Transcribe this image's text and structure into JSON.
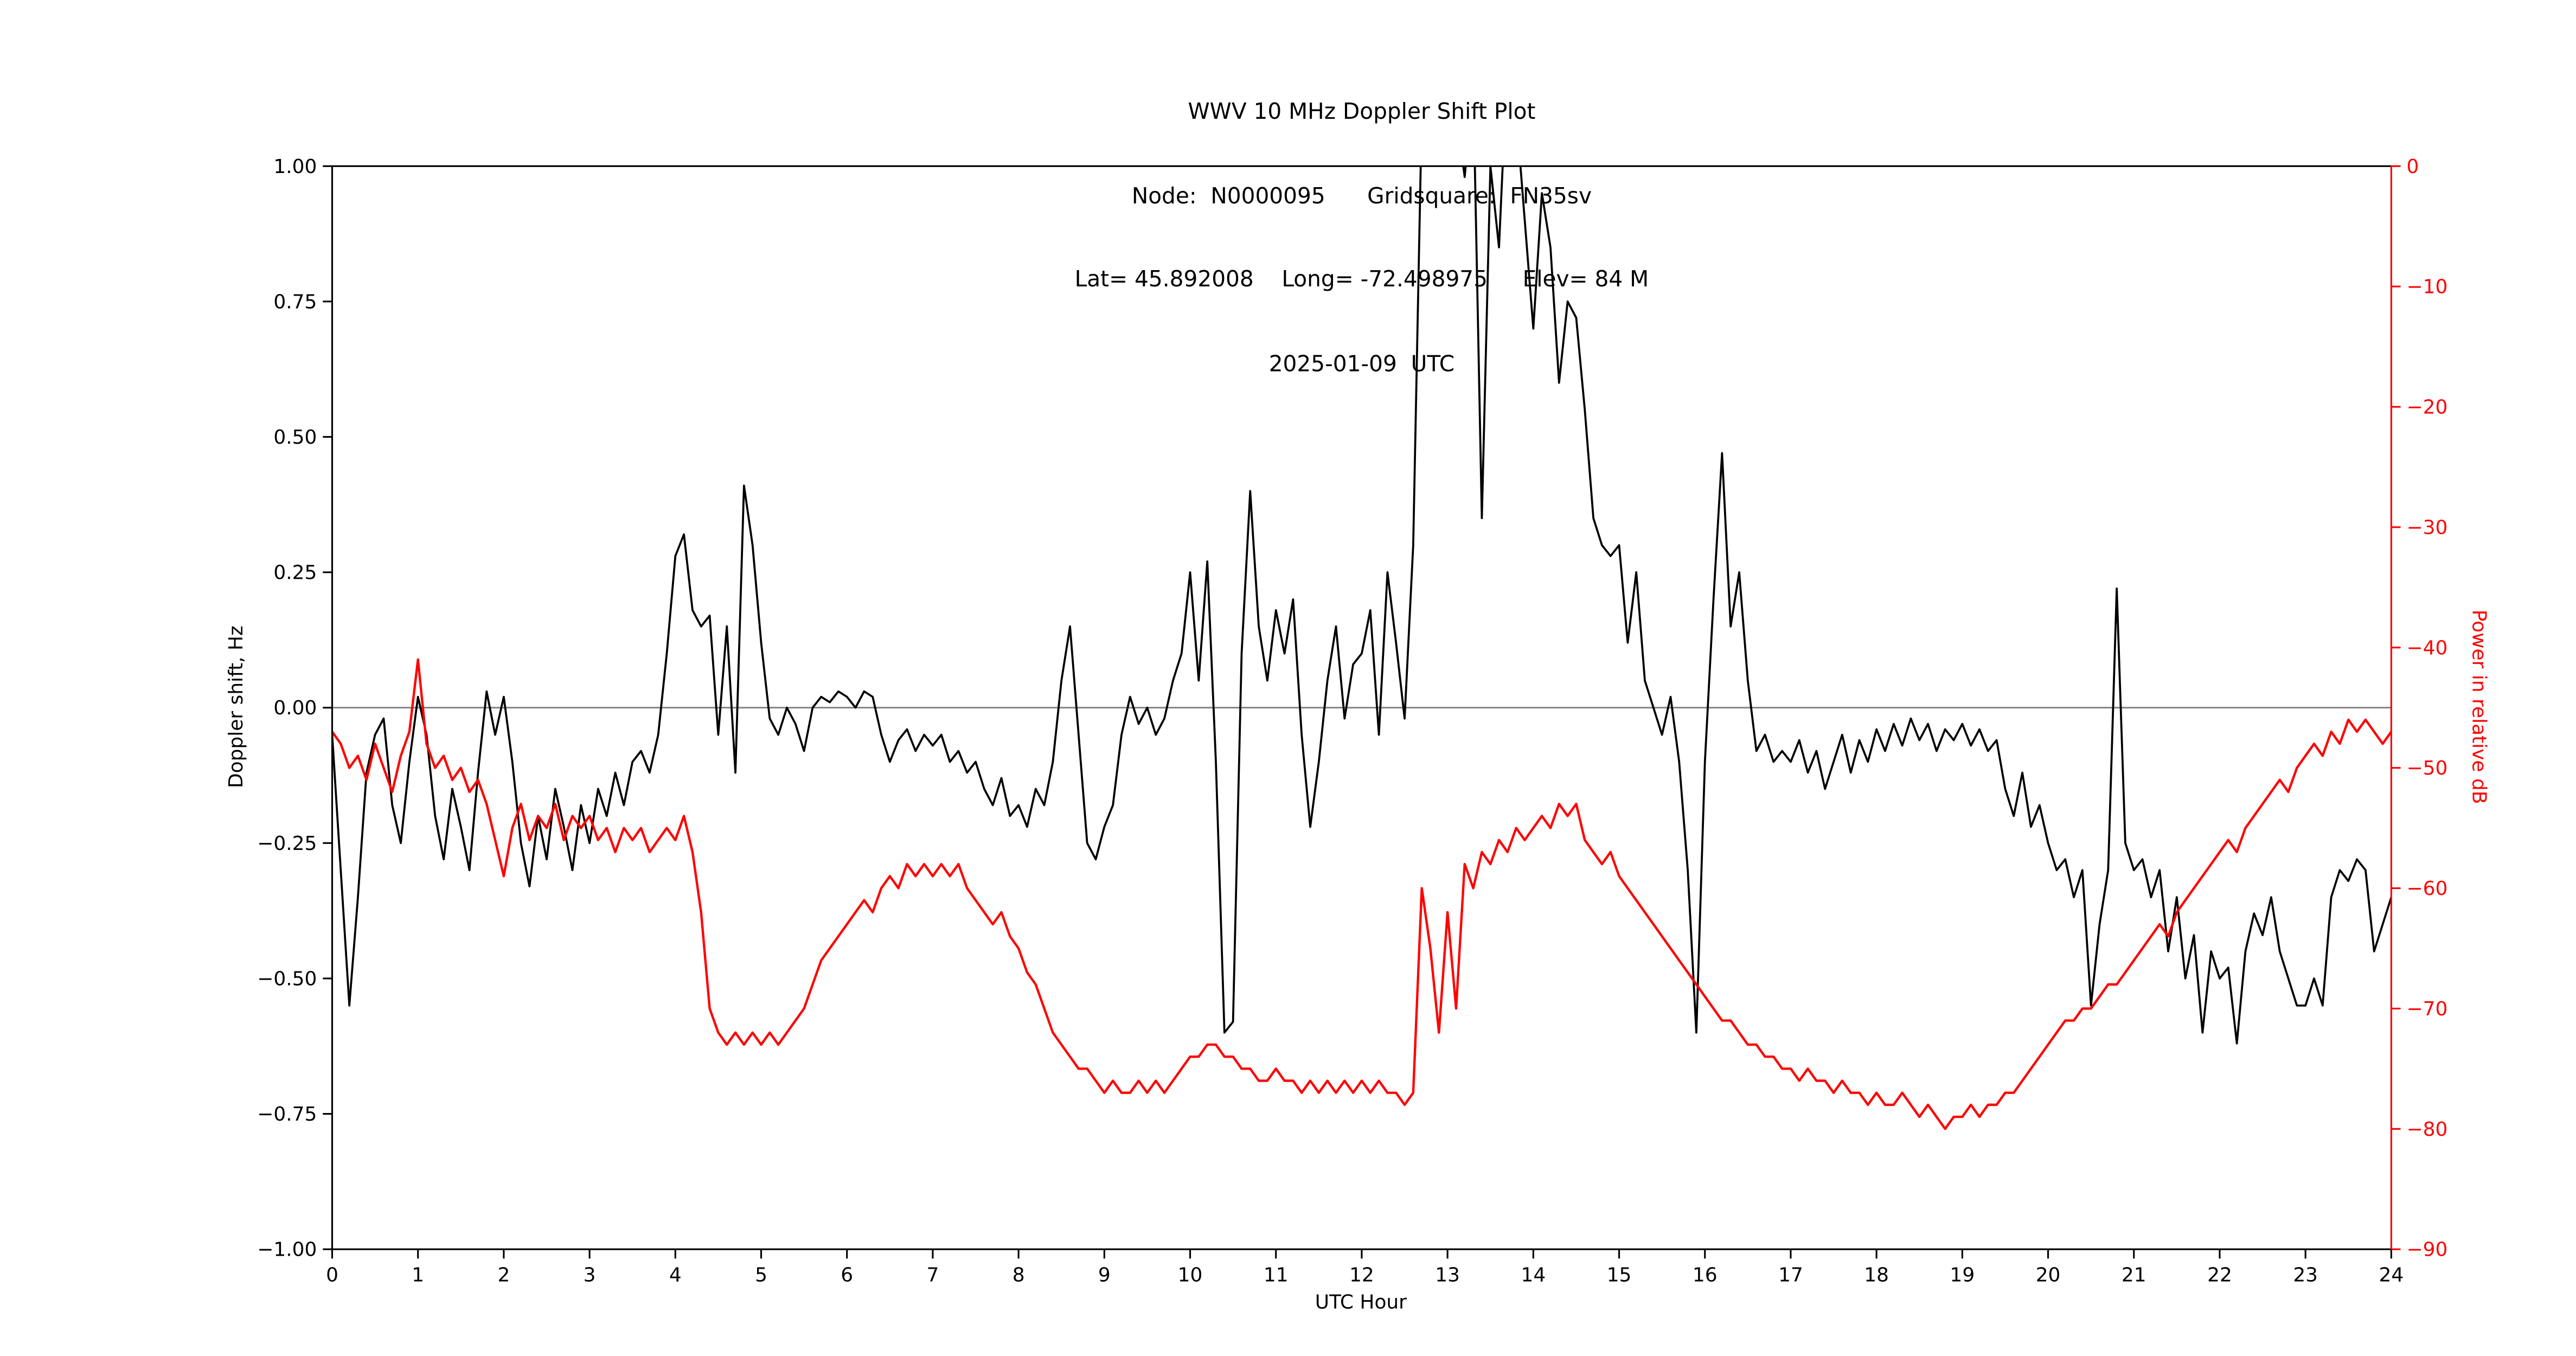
{
  "chart_data": {
    "type": "line",
    "title_lines": [
      "WWV 10 MHz Doppler Shift Plot",
      "Node:  N0000095      Gridsquare:  FN35sv",
      "Lat= 45.892008    Long= -72.498975     Elev= 84 M",
      "2025-01-09  UTC"
    ],
    "colors": {
      "doppler": "#000000",
      "power": "#ff0000",
      "zero_line": "#808080",
      "background": "#ffffff"
    },
    "x_start": 0,
    "x_step": 0.1,
    "axes": {
      "x": {
        "label": "UTC Hour",
        "min": 0,
        "max": 24,
        "ticks": [
          0,
          1,
          2,
          3,
          4,
          5,
          6,
          7,
          8,
          9,
          10,
          11,
          12,
          13,
          14,
          15,
          16,
          17,
          18,
          19,
          20,
          21,
          22,
          23,
          24
        ]
      },
      "left": {
        "label": "Doppler shift, Hz",
        "min": -1.0,
        "max": 1.0,
        "ticks": [
          1.0,
          0.75,
          0.5,
          0.25,
          0.0,
          -0.25,
          -0.5,
          -0.75,
          -1.0
        ],
        "decimals": 2,
        "color": "#000000",
        "zero_line": true
      },
      "right": {
        "label": "Power in relative dB",
        "min": -90,
        "max": 0,
        "ticks": [
          0,
          -10,
          -20,
          -30,
          -40,
          -50,
          -60,
          -70,
          -80,
          -90
        ],
        "decimals": 0,
        "color": "#ff0000"
      }
    },
    "grid": false,
    "legend": "none",
    "series": [
      {
        "name": "doppler_shift_hz",
        "axis": "left",
        "color": "#000000",
        "line_width": 1.2,
        "values": [
          -0.05,
          -0.3,
          -0.55,
          -0.35,
          -0.12,
          -0.05,
          -0.02,
          -0.18,
          -0.25,
          -0.1,
          0.02,
          -0.05,
          -0.2,
          -0.28,
          -0.15,
          -0.22,
          -0.3,
          -0.12,
          0.03,
          -0.05,
          0.02,
          -0.1,
          -0.25,
          -0.33,
          -0.2,
          -0.28,
          -0.15,
          -0.22,
          -0.3,
          -0.18,
          -0.25,
          -0.15,
          -0.2,
          -0.12,
          -0.18,
          -0.1,
          -0.08,
          -0.12,
          -0.05,
          0.1,
          0.28,
          0.32,
          0.18,
          0.15,
          0.17,
          -0.05,
          0.15,
          -0.12,
          0.41,
          0.3,
          0.12,
          -0.02,
          -0.05,
          0.0,
          -0.03,
          -0.08,
          0.0,
          0.02,
          0.01,
          0.03,
          0.02,
          0.0,
          0.03,
          0.02,
          -0.05,
          -0.1,
          -0.06,
          -0.04,
          -0.08,
          -0.05,
          -0.07,
          -0.05,
          -0.1,
          -0.08,
          -0.12,
          -0.1,
          -0.15,
          -0.18,
          -0.13,
          -0.2,
          -0.18,
          -0.22,
          -0.15,
          -0.18,
          -0.1,
          0.05,
          0.15,
          -0.05,
          -0.25,
          -0.28,
          -0.22,
          -0.18,
          -0.05,
          0.02,
          -0.03,
          0.0,
          -0.05,
          -0.02,
          0.05,
          0.1,
          0.25,
          0.05,
          0.27,
          -0.1,
          -0.6,
          -0.58,
          0.1,
          0.4,
          0.15,
          0.05,
          0.18,
          0.1,
          0.2,
          -0.05,
          -0.22,
          -0.1,
          0.05,
          0.15,
          -0.02,
          0.08,
          0.1,
          0.18,
          -0.05,
          0.25,
          0.12,
          -0.02,
          0.3,
          1.1,
          1.25,
          1.15,
          1.3,
          1.1,
          0.98,
          1.15,
          0.35,
          1.0,
          0.85,
          1.2,
          1.1,
          0.9,
          0.7,
          0.95,
          0.85,
          0.6,
          0.75,
          0.72,
          0.55,
          0.35,
          0.3,
          0.28,
          0.3,
          0.12,
          0.25,
          0.05,
          0.0,
          -0.05,
          0.02,
          -0.1,
          -0.3,
          -0.6,
          -0.1,
          0.2,
          0.47,
          0.15,
          0.25,
          0.05,
          -0.08,
          -0.05,
          -0.1,
          -0.08,
          -0.1,
          -0.06,
          -0.12,
          -0.08,
          -0.15,
          -0.1,
          -0.05,
          -0.12,
          -0.06,
          -0.1,
          -0.04,
          -0.08,
          -0.03,
          -0.07,
          -0.02,
          -0.06,
          -0.03,
          -0.08,
          -0.04,
          -0.06,
          -0.03,
          -0.07,
          -0.04,
          -0.08,
          -0.06,
          -0.15,
          -0.2,
          -0.12,
          -0.22,
          -0.18,
          -0.25,
          -0.3,
          -0.28,
          -0.35,
          -0.3,
          -0.55,
          -0.4,
          -0.3,
          0.22,
          -0.25,
          -0.3,
          -0.28,
          -0.35,
          -0.3,
          -0.45,
          -0.35,
          -0.5,
          -0.42,
          -0.6,
          -0.45,
          -0.5,
          -0.48,
          -0.62,
          -0.45,
          -0.38,
          -0.42,
          -0.35,
          -0.45,
          -0.5,
          -0.55,
          -0.55,
          -0.5,
          -0.55,
          -0.35,
          -0.3,
          -0.32,
          -0.28,
          -0.3,
          -0.45,
          -0.4,
          -0.35
        ]
      },
      {
        "name": "power_relative_db",
        "axis": "right",
        "color": "#ff0000",
        "line_width": 1.4,
        "values": [
          -47,
          -48,
          -50,
          -49,
          -51,
          -48,
          -50,
          -52,
          -49,
          -47,
          -41,
          -48,
          -50,
          -49,
          -51,
          -50,
          -52,
          -51,
          -53,
          -56,
          -59,
          -55,
          -53,
          -56,
          -54,
          -55,
          -53,
          -56,
          -54,
          -55,
          -54,
          -56,
          -55,
          -57,
          -55,
          -56,
          -55,
          -57,
          -56,
          -55,
          -56,
          -54,
          -57,
          -62,
          -70,
          -72,
          -73,
          -72,
          -73,
          -72,
          -73,
          -72,
          -73,
          -72,
          -71,
          -70,
          -68,
          -66,
          -65,
          -64,
          -63,
          -62,
          -61,
          -62,
          -60,
          -59,
          -60,
          -58,
          -59,
          -58,
          -59,
          -58,
          -59,
          -58,
          -60,
          -61,
          -62,
          -63,
          -62,
          -64,
          -65,
          -67,
          -68,
          -70,
          -72,
          -73,
          -74,
          -75,
          -75,
          -76,
          -77,
          -76,
          -77,
          -77,
          -76,
          -77,
          -76,
          -77,
          -76,
          -75,
          -74,
          -74,
          -73,
          -73,
          -74,
          -74,
          -75,
          -75,
          -76,
          -76,
          -75,
          -76,
          -76,
          -77,
          -76,
          -77,
          -76,
          -77,
          -76,
          -77,
          -76,
          -77,
          -76,
          -77,
          -77,
          -78,
          -77,
          -60,
          -65,
          -72,
          -62,
          -70,
          -58,
          -60,
          -57,
          -58,
          -56,
          -57,
          -55,
          -56,
          -55,
          -54,
          -55,
          -53,
          -54,
          -53,
          -56,
          -57,
          -58,
          -57,
          -59,
          -60,
          -61,
          -62,
          -63,
          -64,
          -65,
          -66,
          -67,
          -68,
          -69,
          -70,
          -71,
          -71,
          -72,
          -73,
          -73,
          -74,
          -74,
          -75,
          -75,
          -76,
          -75,
          -76,
          -76,
          -77,
          -76,
          -77,
          -77,
          -78,
          -77,
          -78,
          -78,
          -77,
          -78,
          -79,
          -78,
          -79,
          -80,
          -79,
          -79,
          -78,
          -79,
          -78,
          -78,
          -77,
          -77,
          -76,
          -75,
          -74,
          -73,
          -72,
          -71,
          -71,
          -70,
          -70,
          -69,
          -68,
          -68,
          -67,
          -66,
          -65,
          -64,
          -63,
          -64,
          -62,
          -61,
          -60,
          -59,
          -58,
          -57,
          -56,
          -57,
          -55,
          -54,
          -53,
          -52,
          -51,
          -52,
          -50,
          -49,
          -48,
          -49,
          -47,
          -48,
          -46,
          -47,
          -46,
          -47,
          -48,
          -47
        ]
      }
    ]
  }
}
